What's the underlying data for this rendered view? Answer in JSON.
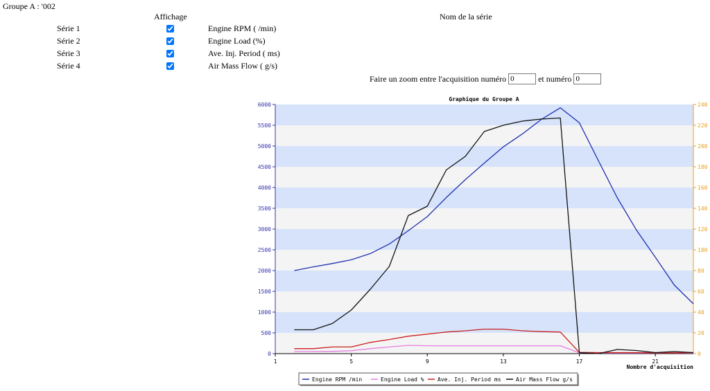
{
  "header": {
    "group_title": "Groupe A : '002",
    "col_display": "Affichage",
    "col_series_name": "Nom de la série"
  },
  "series_controls": [
    {
      "label": "Série 1",
      "checked": true,
      "name": "Engine RPM ( /min)"
    },
    {
      "label": "Série 2",
      "checked": true,
      "name": "Engine Load (%)"
    },
    {
      "label": "Série 3",
      "checked": true,
      "name": "Ave. Inj. Period ( ms)"
    },
    {
      "label": "Série 4",
      "checked": true,
      "name": "Air Mass Flow ( g/s)"
    }
  ],
  "zoom": {
    "label_before": "Faire un zoom entre l'acquisition numéro",
    "from_value": "0",
    "label_between": "et numéro",
    "to_value": "0"
  },
  "colors": {
    "band_blue": "#d6e3fa",
    "band_light": "#f4f4f4",
    "left_axis": "#3333aa",
    "right_axis": "#e6a21c",
    "rpm": "#1f2fb0",
    "load": "#e67ce0",
    "inj": "#c81e1e",
    "maf": "#111111"
  },
  "chart_data": {
    "type": "line",
    "title": "Graphique du Groupe A",
    "xlabel": "Nombre d'acquisition",
    "ylabel": "",
    "xlim": [
      1,
      23
    ],
    "ylim": [
      0,
      6000
    ],
    "y2lim": [
      0,
      240
    ],
    "x_ticks": [
      1,
      5,
      9,
      13,
      17,
      21
    ],
    "y_ticks": [
      0,
      500,
      1000,
      1500,
      2000,
      2500,
      3000,
      3500,
      4000,
      4500,
      5000,
      5500,
      6000
    ],
    "y2_ticks": [
      0,
      20,
      40,
      60,
      80,
      100,
      120,
      140,
      160,
      180,
      200,
      220,
      240
    ],
    "grid": "horizontal bands",
    "legend_position": "bottom",
    "x": [
      2,
      3,
      4,
      5,
      6,
      7,
      8,
      9,
      10,
      11,
      12,
      13,
      14,
      15,
      16,
      17,
      18,
      19,
      20,
      21,
      22,
      23
    ],
    "series": [
      {
        "name": "Engine RPM  /min",
        "axis": "left",
        "color": "#1f2fb0",
        "values": [
          2000,
          2090,
          2170,
          2260,
          2410,
          2640,
          2960,
          3300,
          3760,
          4190,
          4590,
          4980,
          5290,
          5640,
          5920,
          5560,
          4650,
          3750,
          2980,
          2320,
          1650,
          1200
        ]
      },
      {
        "name": "Engine Load %",
        "axis": "left",
        "color": "#e67ce0",
        "values": [
          50,
          50,
          55,
          70,
          120,
          160,
          200,
          190,
          190,
          190,
          190,
          190,
          190,
          190,
          190,
          20,
          15,
          15,
          15,
          15,
          15,
          15
        ]
      },
      {
        "name": "Ave. Inj. Period  ms",
        "axis": "left",
        "color": "#c81e1e",
        "values": [
          120,
          120,
          160,
          160,
          270,
          340,
          420,
          470,
          520,
          550,
          590,
          590,
          550,
          530,
          520,
          30,
          25,
          25,
          25,
          20,
          20,
          25
        ]
      },
      {
        "name": "Air Mass Flow  g/s",
        "axis": "right",
        "color": "#111111",
        "values": [
          23,
          23,
          29,
          42,
          62,
          84,
          133,
          142,
          177,
          190,
          214,
          220,
          224,
          226,
          227,
          1,
          0,
          4,
          3,
          1,
          2,
          1
        ]
      }
    ]
  }
}
